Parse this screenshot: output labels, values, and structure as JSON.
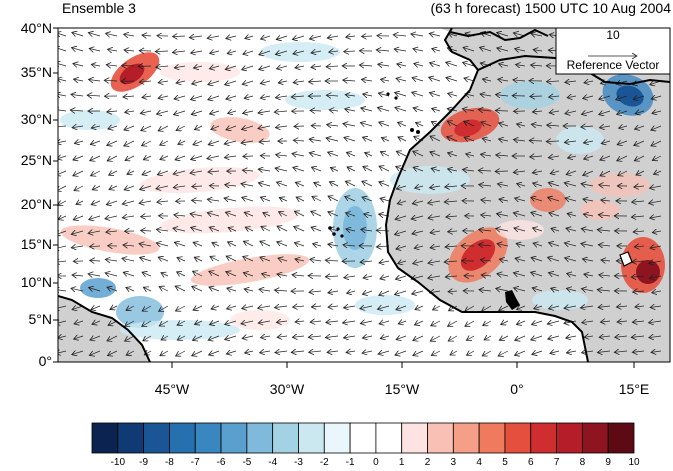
{
  "titles": {
    "left": "Ensemble 3",
    "right": "(63 h forecast) 1500 UTC 10 Aug 2004"
  },
  "map": {
    "lon_range": [
      -60,
      20
    ],
    "lat_range": [
      0,
      40
    ],
    "lat_ticks": [
      "0°",
      "5°N",
      "10°N",
      "15°N",
      "20°N",
      "25°N",
      "30°N",
      "35°N",
      "40°N"
    ],
    "lon_ticks": [
      "45°W",
      "30°W",
      "15°W",
      "0°",
      "15°E"
    ],
    "land_color": "#d0d0d0",
    "coastline_color": "#000000"
  },
  "reference_vector": {
    "magnitude": "10",
    "label": "Reference Vector"
  },
  "colorbar": {
    "labels": [
      "-10",
      "-9",
      "-8",
      "-7",
      "-6",
      "-5",
      "-4",
      "-3",
      "-2",
      "-1",
      "0",
      "1",
      "2",
      "3",
      "4",
      "5",
      "6",
      "7",
      "8",
      "9",
      "10"
    ],
    "colors": [
      "#0a2350",
      "#0f3a73",
      "#1a5696",
      "#2670b0",
      "#3a86c0",
      "#5aa0cf",
      "#7fbadc",
      "#a3d2e4",
      "#cbe8f1",
      "#e9f6fb",
      "#ffffff",
      "#ffffff",
      "#fde3e1",
      "#f9c1b5",
      "#f59e88",
      "#f07a5e",
      "#e5503e",
      "#cf2d2f",
      "#b51d28",
      "#8e1420",
      "#5e0a14"
    ]
  }
}
